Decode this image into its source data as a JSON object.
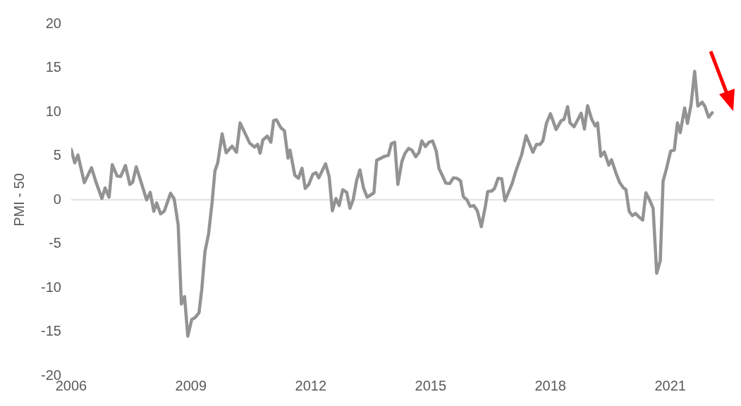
{
  "chart_data": {
    "type": "line",
    "ylabel": "PMI - 50",
    "x": [
      2006.0,
      2006.09,
      2006.17,
      2006.33,
      2006.51,
      2006.62,
      2006.77,
      2006.85,
      2006.95,
      2007.03,
      2007.15,
      2007.24,
      2007.36,
      2007.47,
      2007.54,
      2007.63,
      2007.89,
      2007.98,
      2008.07,
      2008.14,
      2008.24,
      2008.33,
      2008.49,
      2008.58,
      2008.68,
      2008.76,
      2008.84,
      2008.92,
      2009.02,
      2009.1,
      2009.2,
      2009.27,
      2009.35,
      2009.44,
      2009.53,
      2009.6,
      2009.67,
      2009.78,
      2009.88,
      2010.03,
      2010.14,
      2010.23,
      2010.47,
      2010.59,
      2010.67,
      2010.73,
      2010.8,
      2010.91,
      2011.0,
      2011.07,
      2011.14,
      2011.25,
      2011.34,
      2011.43,
      2011.48,
      2011.6,
      2011.69,
      2011.78,
      2011.86,
      2011.95,
      2012.05,
      2012.13,
      2012.2,
      2012.37,
      2012.46,
      2012.54,
      2012.63,
      2012.71,
      2012.8,
      2012.9,
      2012.98,
      2013.06,
      2013.15,
      2013.23,
      2013.32,
      2013.41,
      2013.58,
      2013.65,
      2013.76,
      2013.85,
      2013.94,
      2014.02,
      2014.1,
      2014.18,
      2014.28,
      2014.36,
      2014.45,
      2014.53,
      2014.63,
      2014.71,
      2014.78,
      2014.87,
      2014.96,
      2015.05,
      2015.14,
      2015.21,
      2015.29,
      2015.38,
      2015.48,
      2015.57,
      2015.66,
      2015.75,
      2015.82,
      2015.91,
      2015.99,
      2016.08,
      2016.17,
      2016.27,
      2016.37,
      2016.43,
      2016.53,
      2016.6,
      2016.69,
      2016.78,
      2016.86,
      2016.95,
      2017.04,
      2017.13,
      2017.28,
      2017.39,
      2017.56,
      2017.65,
      2017.74,
      2017.81,
      2017.9,
      2018.0,
      2018.14,
      2018.27,
      2018.34,
      2018.43,
      2018.49,
      2018.59,
      2018.77,
      2018.85,
      2018.93,
      2019.03,
      2019.12,
      2019.18,
      2019.26,
      2019.35,
      2019.46,
      2019.53,
      2019.64,
      2019.73,
      2019.82,
      2019.89,
      2019.97,
      2020.05,
      2020.13,
      2020.23,
      2020.31,
      2020.39,
      2020.47,
      2020.57,
      2020.66,
      2020.75,
      2020.82,
      2020.9,
      2021.01,
      2021.1,
      2021.18,
      2021.25,
      2021.36,
      2021.43,
      2021.52,
      2021.61,
      2021.69,
      2021.8,
      2021.87,
      2021.96,
      2022.05
    ],
    "series": [
      {
        "color": "#939393",
        "values": [
          5.75,
          4.2,
          5.1,
          1.95,
          3.65,
          2.05,
          0.15,
          1.35,
          0.3,
          4.0,
          2.7,
          2.65,
          3.9,
          1.75,
          2.0,
          3.75,
          0.0,
          0.85,
          -1.3,
          -0.35,
          -1.6,
          -1.3,
          0.75,
          0.1,
          -2.85,
          -11.85,
          -11.0,
          -15.5,
          -13.6,
          -13.4,
          -12.85,
          -10.2,
          -5.9,
          -3.9,
          -0.25,
          3.3,
          4.2,
          7.5,
          5.35,
          6.1,
          5.4,
          8.75,
          6.45,
          6.0,
          6.3,
          5.3,
          6.8,
          7.25,
          6.55,
          9.0,
          9.1,
          8.2,
          7.85,
          4.75,
          5.65,
          2.8,
          2.45,
          3.6,
          1.3,
          1.75,
          2.9,
          3.1,
          2.5,
          4.1,
          2.65,
          -1.25,
          0.15,
          -0.65,
          1.15,
          0.85,
          -0.95,
          0.0,
          2.25,
          3.4,
          1.35,
          0.3,
          0.8,
          4.5,
          4.75,
          4.95,
          5.05,
          6.4,
          6.55,
          1.75,
          4.35,
          5.3,
          5.85,
          5.65,
          4.9,
          5.4,
          6.7,
          6.05,
          6.55,
          6.7,
          5.55,
          3.55,
          2.8,
          1.9,
          1.85,
          2.5,
          2.45,
          2.15,
          0.35,
          0.0,
          -0.75,
          -0.65,
          -1.25,
          -3.05,
          -0.75,
          0.95,
          1.0,
          1.3,
          2.45,
          2.4,
          -0.1,
          0.85,
          1.85,
          3.2,
          5.15,
          7.3,
          5.4,
          6.3,
          6.3,
          6.7,
          8.7,
          9.8,
          8.0,
          9.0,
          9.15,
          10.6,
          8.75,
          8.3,
          9.85,
          8.05,
          10.7,
          9.2,
          8.4,
          8.75,
          4.95,
          5.45,
          3.95,
          4.55,
          3.05,
          2.0,
          1.4,
          1.15,
          -1.3,
          -1.8,
          -1.55,
          -2.0,
          -2.3,
          0.8,
          0.1,
          -0.95,
          -8.35,
          -6.9,
          2.15,
          3.45,
          5.55,
          5.65,
          8.75,
          7.65,
          10.45,
          8.7,
          10.8,
          14.6,
          10.65,
          11.1,
          10.6,
          9.4,
          9.9
        ]
      }
    ],
    "xlim": [
      2006,
      2022.1
    ],
    "xticks": [
      2006,
      2009,
      2012,
      2015,
      2018,
      2021
    ],
    "ylim": [
      -20,
      20
    ],
    "yticks": [
      -20,
      -15,
      -10,
      -5,
      0,
      5,
      10,
      15,
      20
    ],
    "ref_lines": [
      {
        "axis": "y",
        "value": 0,
        "color": "#d9d9d9"
      }
    ],
    "marker": "none",
    "line_style": "solid",
    "legend": false,
    "grid": false
  }
}
